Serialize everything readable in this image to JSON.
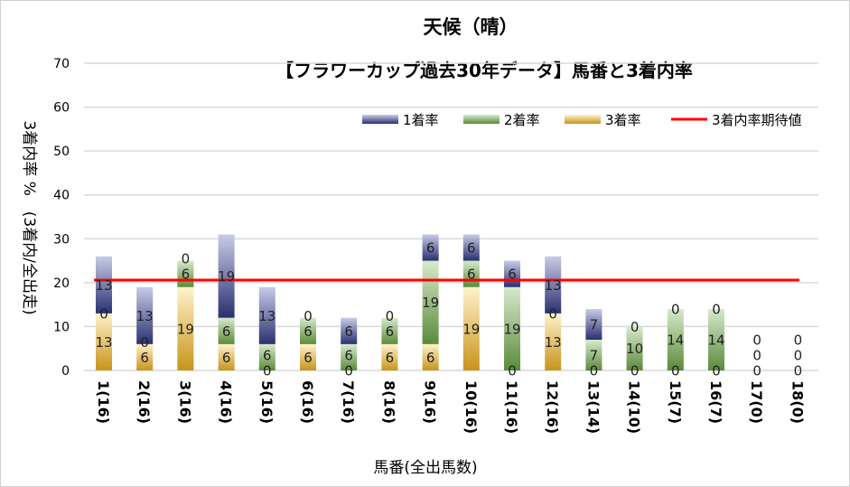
{
  "chart_data": {
    "type": "bar",
    "stacked": true,
    "title": "天候（晴）",
    "subtitle": "【フラワーカップ過去30年データ】馬番と3着内率",
    "xlabel": "馬番(全出馬数)",
    "ylabel": "3着内率 %　(3着内/全出走)",
    "ylim": [
      0,
      70
    ],
    "yticks": [
      0,
      10,
      20,
      30,
      40,
      50,
      60,
      70
    ],
    "grid": true,
    "legend_position": "top-right",
    "categories": [
      "1(16)",
      "2(16)",
      "3(16)",
      "4(16)",
      "5(16)",
      "6(16)",
      "7(16)",
      "8(16)",
      "9(16)",
      "10(16)",
      "11(16)",
      "12(16)",
      "13(14)",
      "14(10)",
      "15(7)",
      "16(7)",
      "17(0)",
      "18(0)"
    ],
    "series": [
      {
        "name": "3着率",
        "color": "#d4a430",
        "values": [
          13,
          6,
          19,
          6,
          0,
          6,
          0,
          6,
          6,
          19,
          0,
          13,
          0,
          0,
          0,
          0,
          0,
          0
        ]
      },
      {
        "name": "2着率",
        "color": "#70a050",
        "values": [
          0,
          0,
          6,
          6,
          6,
          6,
          6,
          6,
          19,
          6,
          19,
          0,
          7,
          10,
          14,
          14,
          0,
          0
        ]
      },
      {
        "name": "1着率",
        "color": "#6870b8",
        "values": [
          13,
          13,
          0,
          19,
          13,
          0,
          6,
          0,
          6,
          6,
          6,
          13,
          7,
          0,
          0,
          0,
          0,
          0
        ]
      }
    ],
    "legend_order": [
      "1着率",
      "2着率",
      "3着率",
      "3着内率期待値"
    ],
    "reference_line": {
      "name": "3着内率期待値",
      "value": 20.6,
      "color": "#ff0000"
    }
  }
}
